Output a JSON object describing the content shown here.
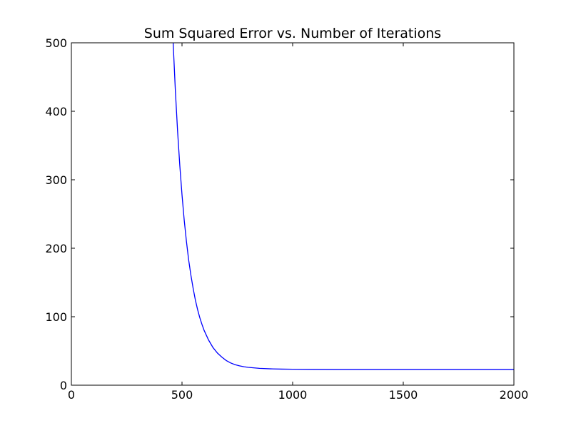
{
  "chart_data": {
    "type": "line",
    "title": "Sum Squared Error vs. Number of Iterations",
    "xlabel": "",
    "ylabel": "",
    "xlim": [
      0,
      2000
    ],
    "ylim": [
      0,
      500
    ],
    "xticks": [
      0,
      500,
      1000,
      1500,
      2000
    ],
    "yticks": [
      0,
      100,
      200,
      300,
      400,
      500
    ],
    "xtick_labels": [
      "0",
      "500",
      "1000",
      "1500",
      "2000"
    ],
    "ytick_labels": [
      "0",
      "100",
      "200",
      "300",
      "400",
      "500"
    ],
    "grid": false,
    "series": [
      {
        "color": "#0000ff",
        "x": [
          460,
          470,
          480,
          490,
          500,
          510,
          520,
          530,
          540,
          550,
          560,
          570,
          580,
          590,
          600,
          620,
          640,
          660,
          680,
          700,
          720,
          740,
          760,
          780,
          800,
          850,
          900,
          950,
          1000,
          1100,
          1200,
          1400,
          1600,
          1800,
          2000
        ],
        "y": [
          500,
          430,
          371,
          321,
          278,
          241,
          210,
          183,
          161,
          142,
          125,
          111,
          99,
          89,
          80,
          66,
          55,
          47,
          41,
          36,
          32.5,
          30,
          28.3,
          27,
          26,
          24.6,
          23.9,
          23.5,
          23.3,
          23.1,
          23,
          23,
          23,
          23,
          23
        ]
      }
    ]
  }
}
